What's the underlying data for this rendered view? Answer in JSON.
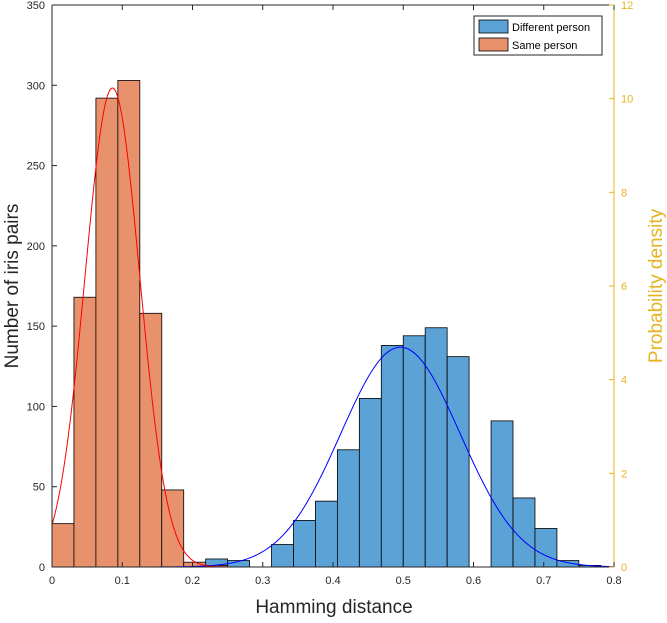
{
  "chart_data": {
    "type": "bar",
    "xlabel": "Hamming distance",
    "ylabel": "Number of iris pairs",
    "y2label": "Probability density",
    "xlim": [
      0,
      0.8
    ],
    "ylim": [
      0,
      350
    ],
    "y2lim": [
      0,
      12
    ],
    "x_ticks": [
      "0",
      "0.1",
      "0.2",
      "0.3",
      "0.4",
      "0.5",
      "0.6",
      "0.7",
      "0.8"
    ],
    "y_ticks": [
      "0",
      "50",
      "100",
      "150",
      "200",
      "250",
      "300",
      "350"
    ],
    "y2_ticks": [
      "0",
      "2",
      "4",
      "6",
      "8",
      "10",
      "12"
    ],
    "bin_width": 0.03125,
    "legend_position": "top-right",
    "grid": false,
    "series": [
      {
        "name": "Different person",
        "color": "#5ba3d6",
        "bins": [
          {
            "x0": 0.21875,
            "value": 5
          },
          {
            "x0": 0.25,
            "value": 4
          },
          {
            "x0": 0.3125,
            "value": 14
          },
          {
            "x0": 0.34375,
            "value": 29
          },
          {
            "x0": 0.375,
            "value": 41
          },
          {
            "x0": 0.40625,
            "value": 73
          },
          {
            "x0": 0.4375,
            "value": 105
          },
          {
            "x0": 0.46875,
            "value": 138
          },
          {
            "x0": 0.5,
            "value": 144
          },
          {
            "x0": 0.53125,
            "value": 149
          },
          {
            "x0": 0.5625,
            "value": 131
          },
          {
            "x0": 0.59375,
            "value": 0
          },
          {
            "x0": 0.625,
            "value": 91
          },
          {
            "x0": 0.65625,
            "value": 43
          },
          {
            "x0": 0.6875,
            "value": 24
          },
          {
            "x0": 0.71875,
            "value": 4
          },
          {
            "x0": 0.75,
            "value": 1
          }
        ],
        "fit": {
          "mean": 0.496,
          "std": 0.085,
          "color": "#0000ff"
        }
      },
      {
        "name": "Same person",
        "color": "#e8916d",
        "bins": [
          {
            "x0": 0.0,
            "value": 27
          },
          {
            "x0": 0.03125,
            "value": 168
          },
          {
            "x0": 0.0625,
            "value": 292
          },
          {
            "x0": 0.09375,
            "value": 303
          },
          {
            "x0": 0.125,
            "value": 158
          },
          {
            "x0": 0.15625,
            "value": 48
          },
          {
            "x0": 0.1875,
            "value": 3
          },
          {
            "x0": 0.21875,
            "value": 1
          }
        ],
        "fit": {
          "mean": 0.086,
          "std": 0.039,
          "color": "#ff0000"
        }
      }
    ]
  }
}
